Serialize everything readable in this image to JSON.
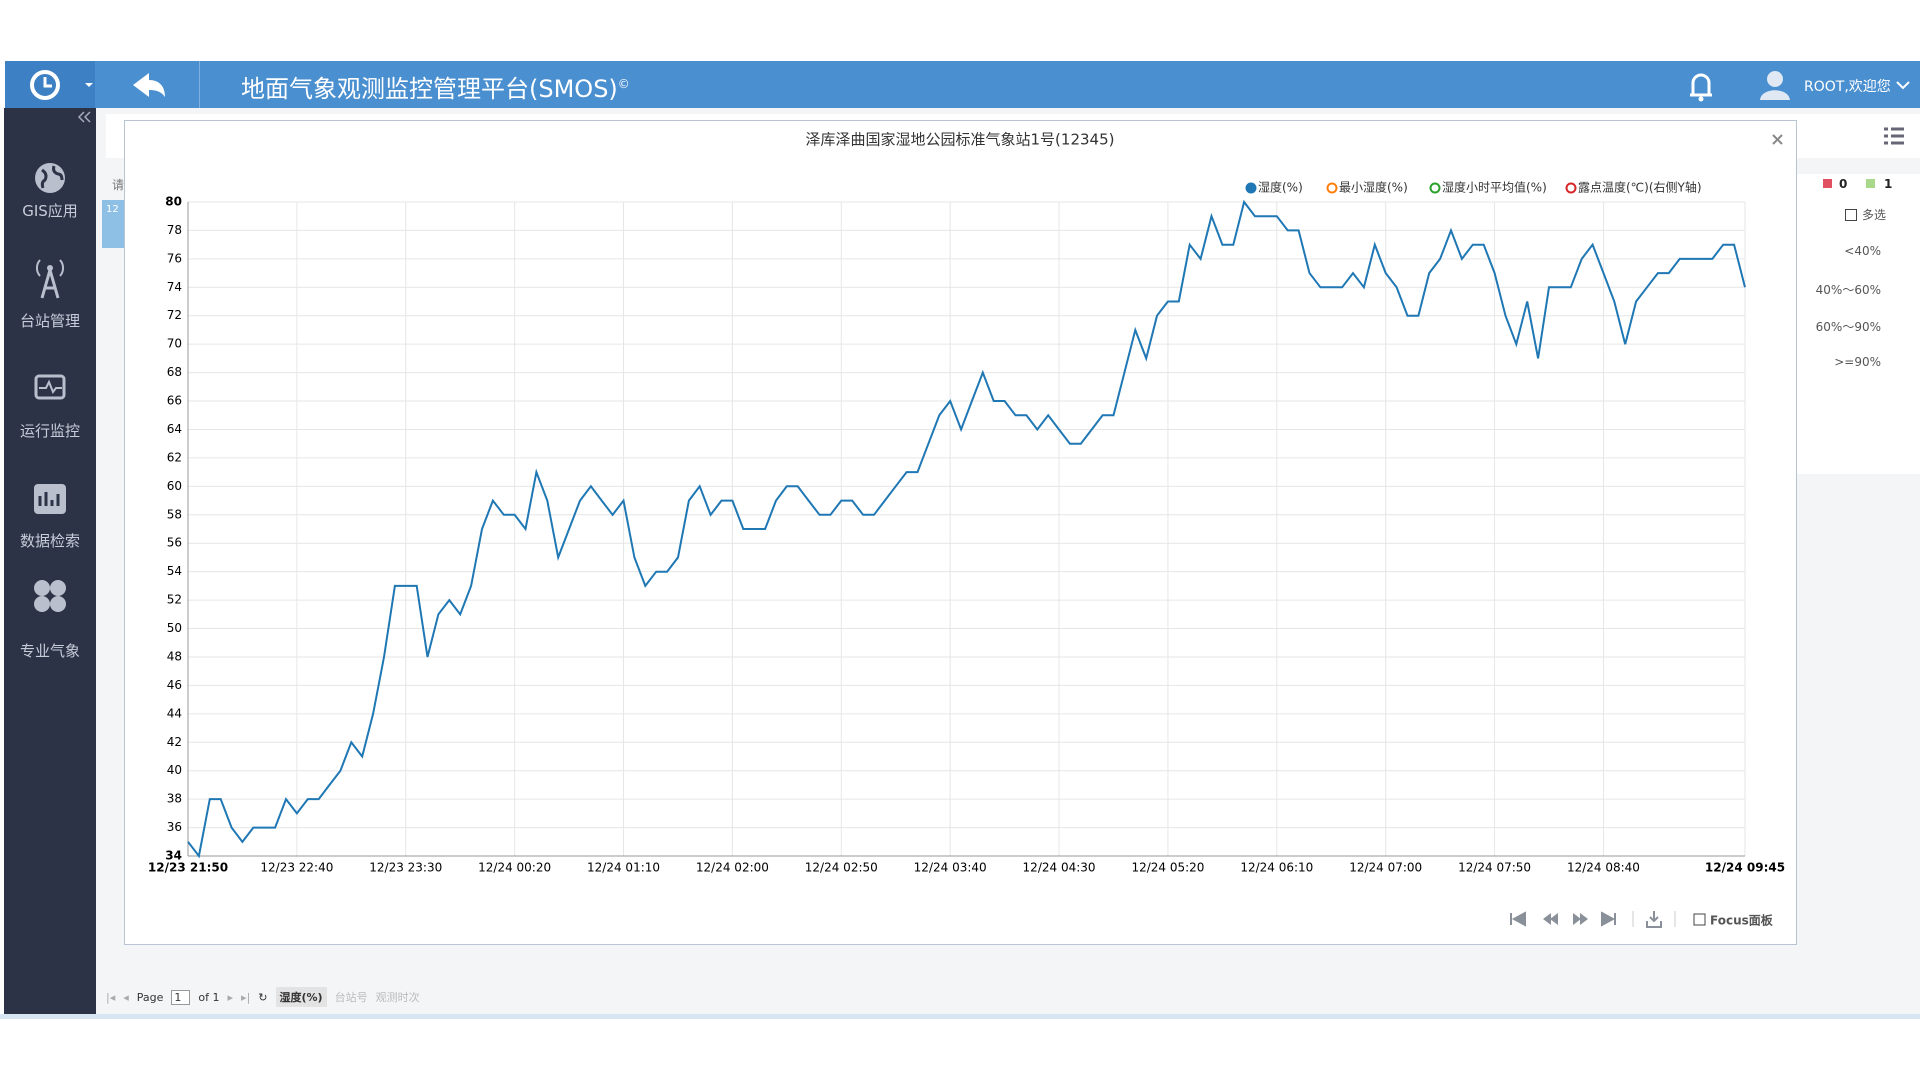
{
  "header": {
    "title": "地面气象观测监控管理平台(SMOS)",
    "title_mark": "©",
    "user": "ROOT,欢迎您"
  },
  "sidebar": {
    "items": [
      "GIS应用",
      "台站管理",
      "运行监控",
      "数据检索",
      "专业气象"
    ]
  },
  "background": {
    "filter_hint": "请",
    "row_hint": "12"
  },
  "right_panel": {
    "counts": [
      0,
      1
    ],
    "multi_select": "多选",
    "ranges": [
      "<40%",
      "40%～60%",
      "60%～90%",
      ">=90%"
    ]
  },
  "pager": {
    "page_label": "Page",
    "page": 1,
    "of": "of 1",
    "sort_fields": [
      "湿度(%)",
      "台站号",
      "观测时次"
    ]
  },
  "chart_toolbar": {
    "focus": "Focus面板"
  },
  "chart_data": {
    "type": "line",
    "title": "泽库泽曲国家湿地公园标准气象站1号(12345)",
    "x": [
      "12/23 21:50",
      "12/23 21:55",
      "12/23 22:00",
      "12/23 22:05",
      "12/23 22:10",
      "12/23 22:15",
      "12/23 22:20",
      "12/23 22:25",
      "12/23 22:30",
      "12/23 22:35",
      "12/23 22:40",
      "12/23 22:45",
      "12/23 22:50",
      "12/23 22:55",
      "12/23 23:00",
      "12/23 23:05",
      "12/23 23:10",
      "12/23 23:15",
      "12/23 23:20",
      "12/23 23:25",
      "12/23 23:30",
      "12/23 23:35",
      "12/23 23:40",
      "12/23 23:45",
      "12/23 23:50",
      "12/23 23:55",
      "12/24 00:00",
      "12/24 00:05",
      "12/24 00:10",
      "12/24 00:15",
      "12/24 00:20",
      "12/24 00:25",
      "12/24 00:30",
      "12/24 00:35",
      "12/24 00:40",
      "12/24 00:45",
      "12/24 00:50",
      "12/24 00:55",
      "12/24 01:00",
      "12/24 01:05",
      "12/24 01:10",
      "12/24 01:15",
      "12/24 01:20",
      "12/24 01:25",
      "12/24 01:30",
      "12/24 01:35",
      "12/24 01:40",
      "12/24 01:45",
      "12/24 01:50",
      "12/24 01:55",
      "12/24 02:00",
      "12/24 02:05",
      "12/24 02:10",
      "12/24 02:15",
      "12/24 02:20",
      "12/24 02:25",
      "12/24 02:30",
      "12/24 02:35",
      "12/24 02:40",
      "12/24 02:45",
      "12/24 02:50",
      "12/24 02:55",
      "12/24 03:00",
      "12/24 03:05",
      "12/24 03:10",
      "12/24 03:15",
      "12/24 03:20",
      "12/24 03:25",
      "12/24 03:30",
      "12/24 03:35",
      "12/24 03:40",
      "12/24 03:45",
      "12/24 03:50",
      "12/24 03:55",
      "12/24 04:00",
      "12/24 04:05",
      "12/24 04:10",
      "12/24 04:15",
      "12/24 04:20",
      "12/24 04:25",
      "12/24 04:30",
      "12/24 04:35",
      "12/24 04:40",
      "12/24 04:45",
      "12/24 04:50",
      "12/24 04:55",
      "12/24 05:00",
      "12/24 05:05",
      "12/24 05:10",
      "12/24 05:15",
      "12/24 05:20",
      "12/24 05:25",
      "12/24 05:30",
      "12/24 05:35",
      "12/24 05:40",
      "12/24 05:45",
      "12/24 05:50",
      "12/24 05:55",
      "12/24 06:00",
      "12/24 06:05",
      "12/24 06:10",
      "12/24 06:15",
      "12/24 06:20",
      "12/24 06:25",
      "12/24 06:30",
      "12/24 06:35",
      "12/24 06:40",
      "12/24 06:45",
      "12/24 06:50",
      "12/24 06:55",
      "12/24 07:00",
      "12/24 07:05",
      "12/24 07:10",
      "12/24 07:15",
      "12/24 07:20",
      "12/24 07:25",
      "12/24 07:30",
      "12/24 07:35",
      "12/24 07:40",
      "12/24 07:45",
      "12/24 07:50",
      "12/24 07:55",
      "12/24 08:00",
      "12/24 08:05",
      "12/24 08:10",
      "12/24 08:15",
      "12/24 08:20",
      "12/24 08:25",
      "12/24 08:30",
      "12/24 08:35",
      "12/24 08:40",
      "12/24 08:45",
      "12/24 08:50",
      "12/24 08:55",
      "12/24 09:00",
      "12/24 09:05",
      "12/24 09:10",
      "12/24 09:15",
      "12/24 09:20",
      "12/24 09:25",
      "12/24 09:30",
      "12/24 09:35",
      "12/24 09:40",
      "12/24 09:45"
    ],
    "series": [
      {
        "name": "湿度(%)",
        "color": "#1f77b4",
        "values": [
          35,
          34,
          38,
          38,
          36,
          35,
          36,
          36,
          36,
          38,
          37,
          38,
          38,
          39,
          40,
          42,
          41,
          44,
          48,
          53,
          53,
          53,
          48,
          51,
          52,
          51,
          53,
          57,
          59,
          58,
          58,
          57,
          61,
          59,
          55,
          57,
          59,
          60,
          59,
          58,
          59,
          55,
          53,
          54,
          54,
          55,
          59,
          60,
          58,
          59,
          59,
          57,
          57,
          57,
          59,
          60,
          60,
          59,
          58,
          58,
          59,
          59,
          58,
          58,
          59,
          60,
          61,
          61,
          63,
          65,
          66,
          64,
          66,
          68,
          66,
          66,
          65,
          65,
          64,
          65,
          64,
          63,
          63,
          64,
          65,
          65,
          68,
          71,
          69,
          72,
          73,
          73,
          77,
          76,
          79,
          77,
          77,
          80,
          79,
          79,
          79,
          78,
          78,
          75,
          74,
          74,
          74,
          75,
          74,
          77,
          75,
          74,
          72,
          72,
          75,
          76,
          78,
          76,
          77,
          77,
          75,
          72,
          70,
          73,
          69,
          74,
          74,
          74,
          76,
          77,
          75,
          73,
          70,
          73,
          74,
          75,
          75,
          76,
          76,
          76,
          76,
          77,
          77,
          74
        ]
      }
    ],
    "hidden_series": [
      {
        "name": "最小湿度(%)",
        "color": "#ff7f0e"
      },
      {
        "name": "湿度小时平均值(%)",
        "color": "#2ca02c"
      },
      {
        "name": "露点温度(℃)(右侧Y轴)",
        "color": "#d62728"
      }
    ],
    "xlim": [
      "12/23 21:50",
      "12/24 09:45"
    ],
    "xticks": [
      "12/23 21:50",
      "12/23 22:40",
      "12/23 23:30",
      "12/24 00:20",
      "12/24 01:10",
      "12/24 02:00",
      "12/24 02:50",
      "12/24 03:40",
      "12/24 04:30",
      "12/24 05:20",
      "12/24 06:10",
      "12/24 07:00",
      "12/24 07:50",
      "12/24 08:40",
      "12/24 09:45"
    ],
    "ylim": [
      34,
      80
    ],
    "yticks": [
      34,
      36,
      38,
      40,
      42,
      44,
      46,
      48,
      50,
      52,
      54,
      56,
      58,
      60,
      62,
      64,
      66,
      68,
      70,
      72,
      74,
      76,
      78,
      80
    ],
    "grid": true,
    "legend": "top-right"
  }
}
